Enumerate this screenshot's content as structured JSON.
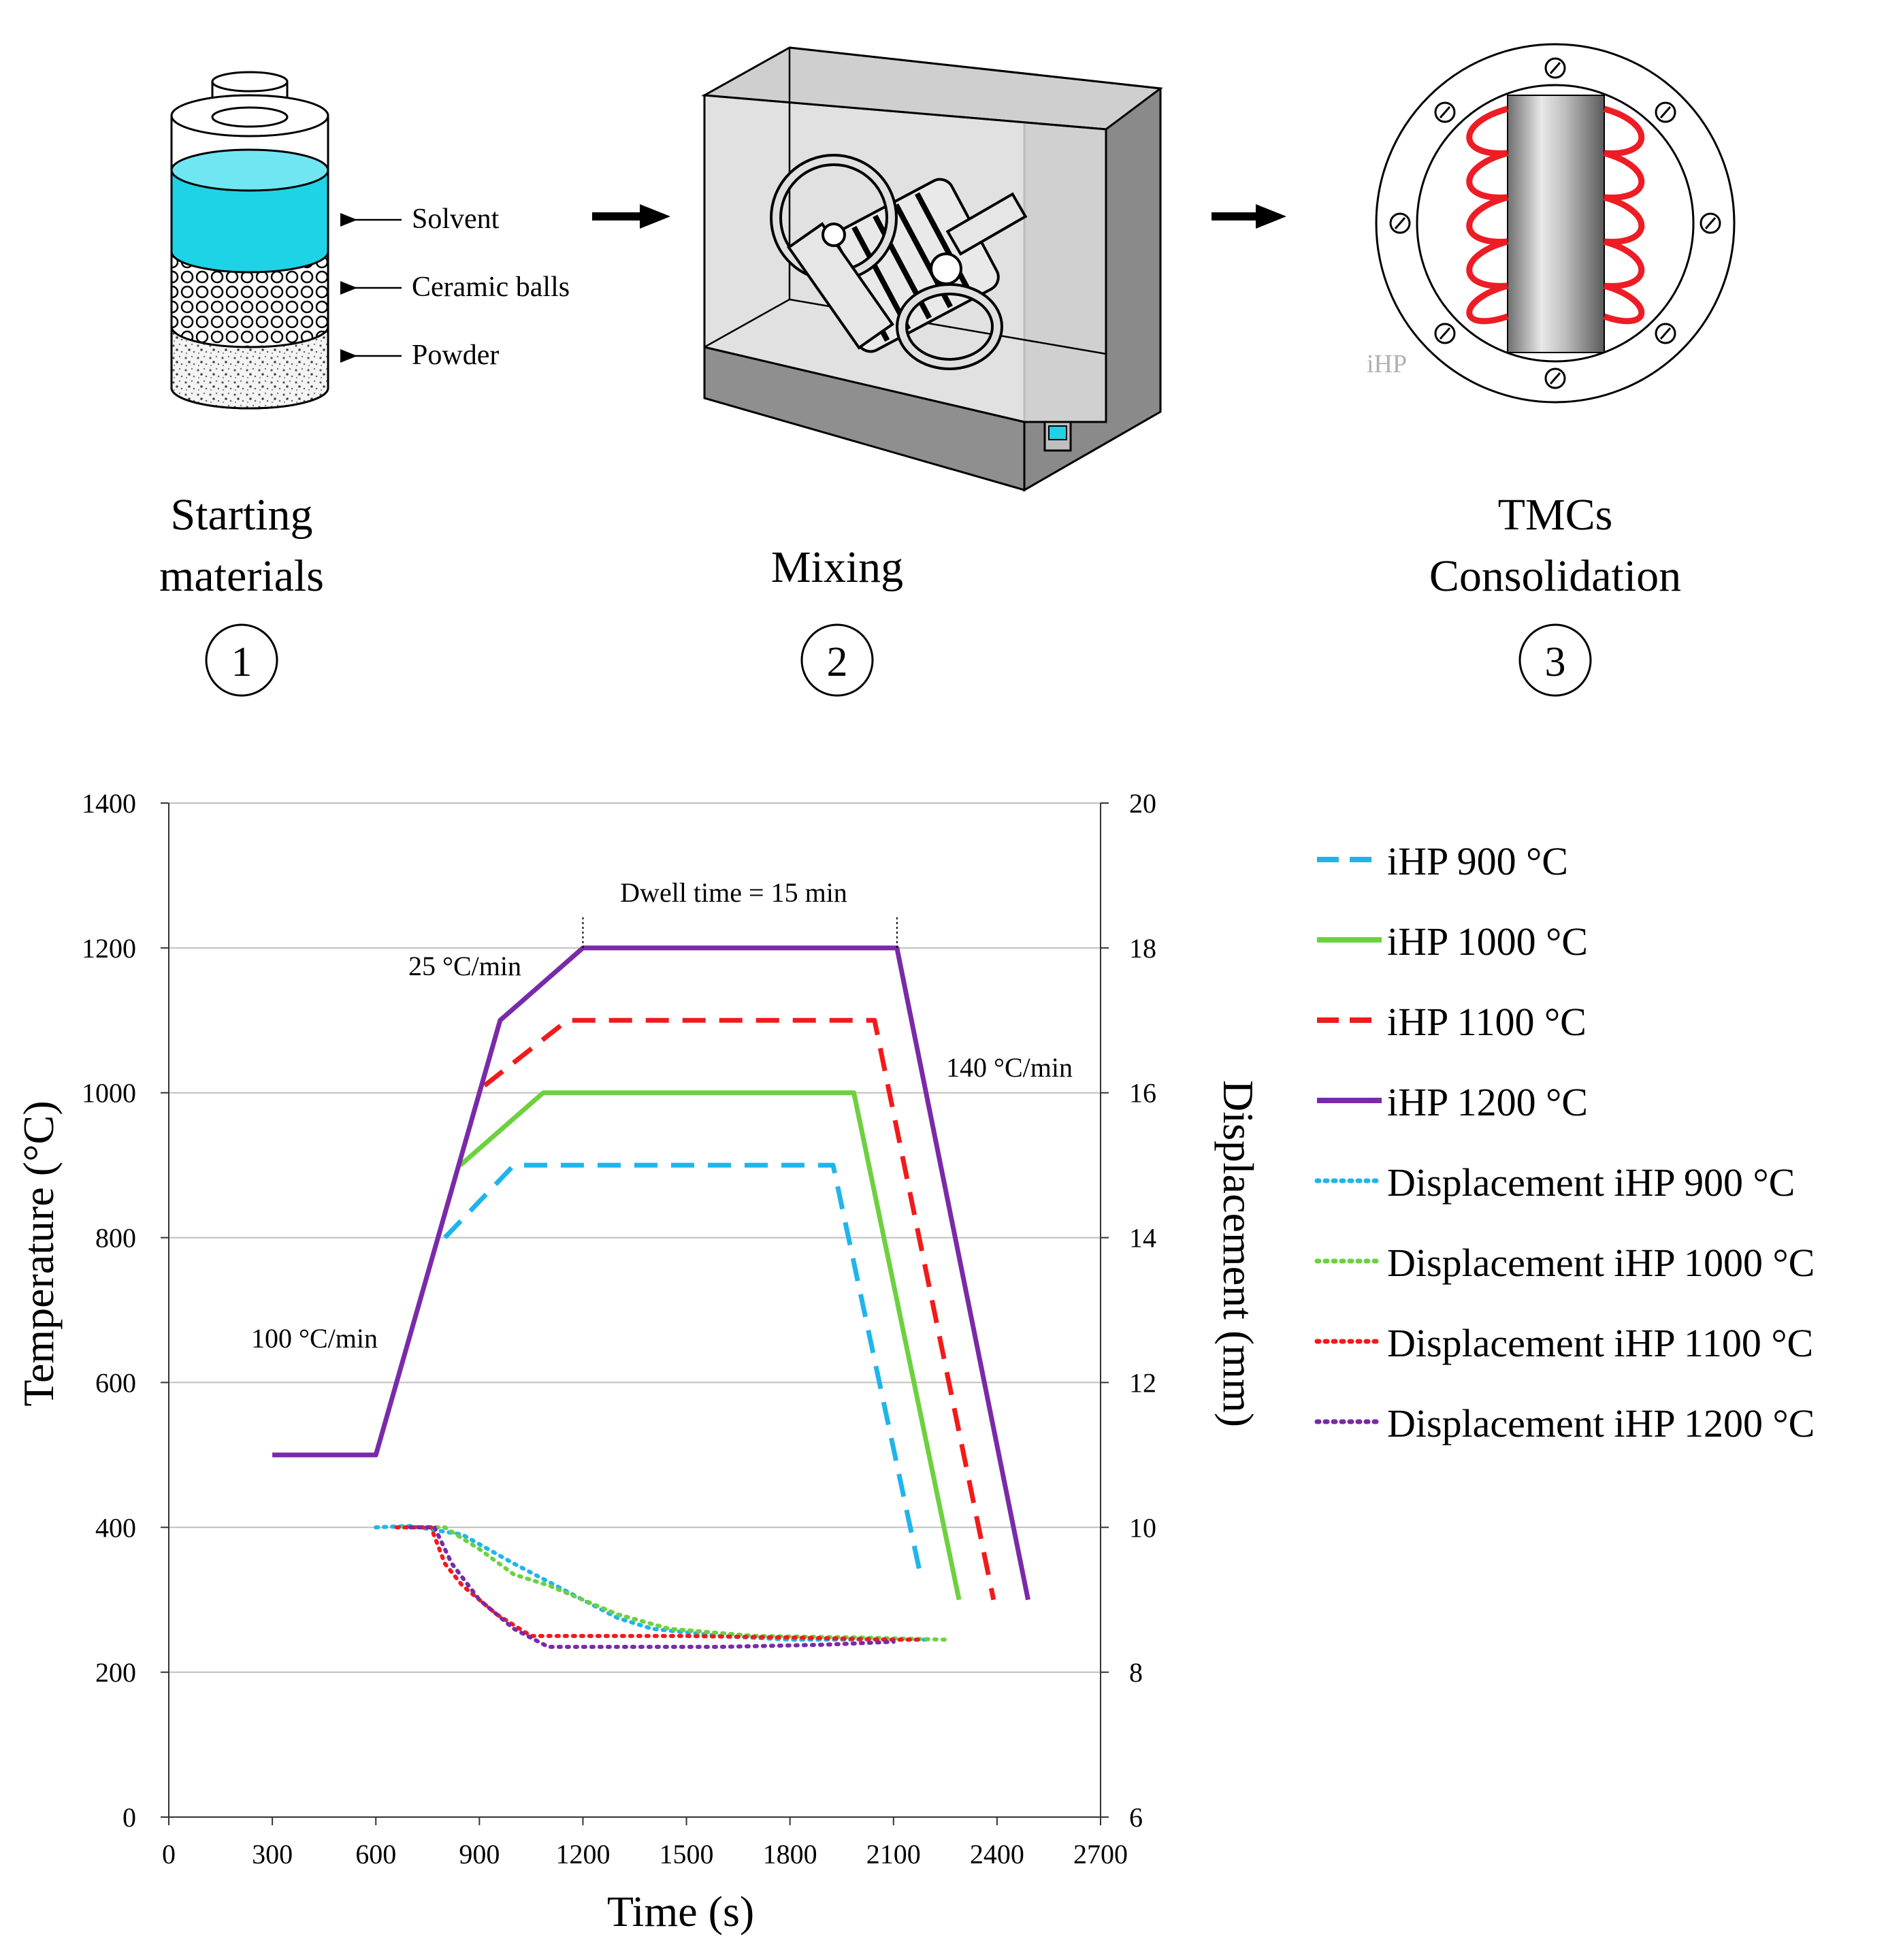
{
  "steps": [
    {
      "number": "1",
      "title_line1": "Starting",
      "title_line2": "materials"
    },
    {
      "number": "2",
      "title_line1": "Mixing",
      "title_line2": ""
    },
    {
      "number": "3",
      "title_line1": "TMCs",
      "title_line2": "Consolidation"
    }
  ],
  "jar_labels": {
    "solvent": "Solvent",
    "balls": "Ceramic balls",
    "powder": "Powder"
  },
  "furnace_label": "iHP",
  "colors": {
    "solvent": "#1ed3e6",
    "t900": "#1fb5ec",
    "t1000": "#6dd13f",
    "t1100": "#f21a1a",
    "t1200": "#7a2aa8",
    "coil": "#ee1c24",
    "grid": "#bfbfbf"
  },
  "chart_data": {
    "type": "line",
    "xlabel": "Time (s)",
    "ylabel": "Temperature (°C)",
    "y2label": "Displacement (mm)",
    "xlim": [
      0,
      2700
    ],
    "ylim": [
      0,
      1400
    ],
    "y2lim": [
      6,
      20
    ],
    "xticks": [
      0,
      300,
      600,
      900,
      1200,
      1500,
      1800,
      2100,
      2400,
      2700
    ],
    "yticks": [
      0,
      200,
      400,
      600,
      800,
      1000,
      1200,
      1400
    ],
    "y2ticks": [
      6,
      8,
      10,
      12,
      14,
      16,
      18,
      20
    ],
    "grid": "horizontal",
    "legend_position": "right",
    "annotations": {
      "dwell": "Dwell time = 15 min",
      "rate25": "25 °C/min",
      "rate100": "100 °C/min",
      "rate140": "140 °C/min"
    },
    "series": [
      {
        "name": "iHP 900 °C",
        "style": "dashed",
        "color_key": "t900",
        "axis": "left",
        "points": [
          [
            800,
            800
          ],
          [
            1000,
            900
          ],
          [
            1925,
            900
          ],
          [
            2180,
            330
          ]
        ]
      },
      {
        "name": "iHP 1000 °C",
        "style": "solid",
        "color_key": "t1000",
        "axis": "left",
        "points": [
          [
            845,
            900
          ],
          [
            1085,
            1000
          ],
          [
            1985,
            1000
          ],
          [
            2290,
            300
          ]
        ]
      },
      {
        "name": "iHP 1100 °C",
        "style": "dashed",
        "color_key": "t1100",
        "axis": "left",
        "points": [
          [
            915,
            1010
          ],
          [
            1155,
            1100
          ],
          [
            2045,
            1100
          ],
          [
            2390,
            300
          ]
        ]
      },
      {
        "name": "iHP 1200 °C",
        "style": "solid",
        "color_key": "t1200",
        "axis": "left",
        "points": [
          [
            300,
            500
          ],
          [
            600,
            500
          ],
          [
            960,
            1100
          ],
          [
            1200,
            1200
          ],
          [
            2110,
            1200
          ],
          [
            2490,
            300
          ]
        ]
      },
      {
        "name": "Displacement iHP 900 °C",
        "style": "dotted",
        "color_key": "t900",
        "axis": "right",
        "points": [
          [
            600,
            10
          ],
          [
            700,
            10.02
          ],
          [
            850,
            9.9
          ],
          [
            1000,
            9.5
          ],
          [
            1100,
            9.25
          ],
          [
            1200,
            9.0
          ],
          [
            1300,
            8.75
          ],
          [
            1400,
            8.6
          ],
          [
            1600,
            8.5
          ],
          [
            1800,
            8.45
          ],
          [
            2000,
            8.45
          ],
          [
            2200,
            8.45
          ]
        ]
      },
      {
        "name": "Displacement iHP 1000 °C",
        "style": "dotted",
        "color_key": "t1000",
        "axis": "right",
        "points": [
          [
            680,
            10
          ],
          [
            800,
            10
          ],
          [
            900,
            9.7
          ],
          [
            1000,
            9.35
          ],
          [
            1100,
            9.2
          ],
          [
            1200,
            9.0
          ],
          [
            1300,
            8.8
          ],
          [
            1450,
            8.6
          ],
          [
            1700,
            8.5
          ],
          [
            2000,
            8.48
          ],
          [
            2250,
            8.45
          ]
        ]
      },
      {
        "name": "Displacement iHP 1100 °C",
        "style": "dotted",
        "color_key": "t1100",
        "axis": "right",
        "points": [
          [
            660,
            10
          ],
          [
            760,
            10
          ],
          [
            800,
            9.5
          ],
          [
            850,
            9.2
          ],
          [
            950,
            8.8
          ],
          [
            1050,
            8.5
          ],
          [
            1200,
            8.5
          ],
          [
            1500,
            8.5
          ],
          [
            1800,
            8.48
          ],
          [
            2100,
            8.45
          ],
          [
            2180,
            8.45
          ]
        ]
      },
      {
        "name": "Displacement iHP 1200 °C",
        "style": "dotted",
        "color_key": "t1200",
        "axis": "right",
        "points": [
          [
            700,
            10
          ],
          [
            770,
            10
          ],
          [
            820,
            9.5
          ],
          [
            900,
            9.0
          ],
          [
            1000,
            8.6
          ],
          [
            1100,
            8.35
          ],
          [
            1300,
            8.35
          ],
          [
            1600,
            8.35
          ],
          [
            1900,
            8.38
          ],
          [
            2100,
            8.42
          ]
        ]
      }
    ]
  }
}
